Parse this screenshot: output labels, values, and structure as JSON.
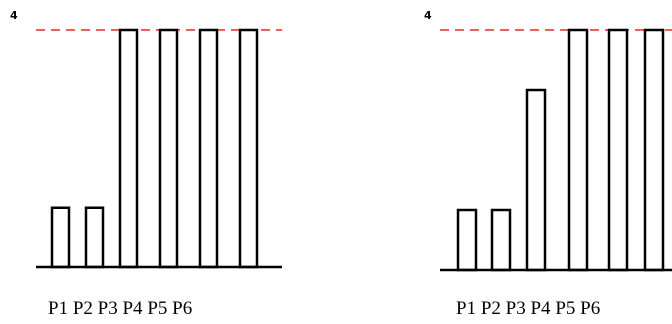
{
  "chart_data": [
    {
      "type": "bar",
      "categories": [
        "P1",
        "P2",
        "P3",
        "P4",
        "P5",
        "P6"
      ],
      "values": [
        1,
        1,
        4,
        4,
        4,
        4
      ],
      "ylim": [
        0,
        4
      ],
      "y_tick_label": "4",
      "reference_line": {
        "value": 4,
        "style": "dashed",
        "color": "#e00000"
      },
      "grid": false
    },
    {
      "type": "bar",
      "categories": [
        "P1",
        "P2",
        "P3",
        "P4",
        "P5",
        "P6"
      ],
      "values": [
        1,
        1,
        3,
        4,
        4,
        4
      ],
      "ylim": [
        0,
        4
      ],
      "y_tick_label": "4",
      "reference_line": {
        "value": 4,
        "style": "dashed",
        "color": "#e00000"
      },
      "grid": false
    }
  ],
  "colors": {
    "bar_fill": "#ffffff",
    "bar_stroke": "#000000",
    "reference_line": "#e00000"
  }
}
